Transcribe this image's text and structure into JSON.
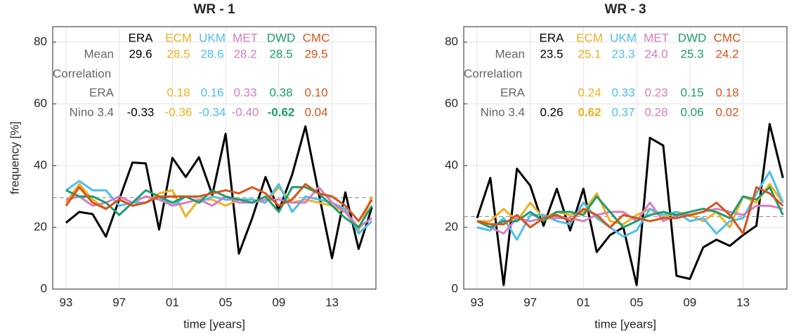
{
  "chart_data": [
    {
      "type": "line",
      "title": "WR - 1",
      "xlabel": "time [years]",
      "ylabel": "frequency [%]",
      "categories": [
        "93",
        null,
        null,
        null,
        "97",
        null,
        null,
        null,
        "01",
        null,
        null,
        null,
        "05",
        null,
        null,
        null,
        "09",
        null,
        null,
        null,
        "13",
        null,
        null,
        null
      ],
      "series": [
        {
          "name": "ERA",
          "color": "#000000",
          "values": [
            21.5,
            25,
            24.3,
            17,
            29,
            41,
            40.7,
            19.3,
            42.5,
            36.3,
            42.7,
            30.5,
            50.3,
            11.5,
            23,
            36.3,
            25.5,
            37,
            52.7,
            31,
            10,
            31.3,
            13,
            26.5
          ]
        },
        {
          "name": "ECM",
          "color": "#EDB120",
          "values": [
            28,
            34,
            29,
            26,
            29,
            27,
            28,
            31,
            32,
            23.5,
            29,
            29,
            27,
            29,
            29,
            28,
            33,
            28,
            29,
            28,
            27,
            25,
            19,
            30
          ]
        },
        {
          "name": "UKM",
          "color": "#4DBEEE",
          "values": [
            32,
            35,
            32,
            32,
            27,
            28,
            28,
            30,
            27,
            30,
            28,
            30,
            29,
            29,
            29,
            28,
            34,
            25,
            30,
            29,
            28,
            26,
            18,
            22
          ]
        },
        {
          "name": "MET",
          "color": "#D87CBE",
          "values": [
            29,
            30,
            27,
            28,
            30,
            28,
            30,
            29,
            27,
            28,
            29,
            27,
            30,
            28,
            28,
            29,
            29,
            28,
            28,
            33,
            28,
            25,
            20,
            23
          ]
        },
        {
          "name": "DWD",
          "color": "#1A9E6E",
          "values": [
            32,
            30,
            30,
            28,
            24,
            28,
            32,
            30,
            28,
            30,
            28,
            32,
            30,
            29,
            28,
            30,
            25,
            33,
            33,
            31,
            27,
            23,
            20,
            27
          ]
        },
        {
          "name": "CMC",
          "color": "#D95319",
          "values": [
            27,
            33,
            28,
            26,
            29,
            27,
            28,
            30,
            30,
            30,
            30,
            31,
            32,
            31,
            33,
            31,
            27,
            29,
            34,
            31,
            30,
            27,
            22,
            29
          ]
        }
      ],
      "ylim": [
        0,
        85
      ],
      "yticks": [
        0,
        20,
        40,
        60,
        80
      ],
      "grid": true,
      "mean_line": true,
      "table": {
        "rows": [
          {
            "label": "Mean",
            "values": [
              "29.6",
              "28.5",
              "28.6",
              "28.2",
              "28.5",
              "29.5"
            ]
          },
          {
            "label": "Correlation"
          },
          {
            "label": "ERA",
            "values": [
              null,
              "0.18",
              "0.16",
              "0.33",
              "0.38",
              "0.10"
            ]
          },
          {
            "label": "Nino 3.4",
            "values": [
              "-0.33",
              "-0.36",
              "-0.34",
              "-0.40",
              "-0.62",
              "0.04"
            ]
          }
        ],
        "bold_cell": [
          3,
          4
        ]
      }
    },
    {
      "type": "line",
      "title": "WR - 3",
      "xlabel": "time [years]",
      "categories": [
        "93",
        null,
        null,
        null,
        "97",
        null,
        null,
        null,
        "01",
        null,
        null,
        null,
        "05",
        null,
        null,
        null,
        "09",
        null,
        null,
        null,
        "13",
        null,
        null,
        null
      ],
      "series": [
        {
          "name": "ERA",
          "color": "#000000",
          "values": [
            23,
            36,
            1.3,
            39,
            33.5,
            20.5,
            32.5,
            19,
            32.5,
            12,
            17.5,
            20,
            1.3,
            49,
            46.5,
            4.3,
            3.3,
            13.5,
            16,
            14,
            17.5,
            20.5,
            53.5,
            36
          ]
        },
        {
          "name": "ECM",
          "color": "#EDB120",
          "values": [
            22,
            22,
            26,
            22,
            28,
            23,
            25,
            24,
            25,
            31,
            22,
            21,
            24,
            26,
            23,
            25,
            24,
            22,
            25,
            20,
            30,
            28,
            34,
            28
          ]
        },
        {
          "name": "UKM",
          "color": "#4DBEEE",
          "values": [
            20,
            19,
            23,
            16,
            24,
            24,
            22,
            21,
            28,
            23,
            20,
            17,
            19,
            26,
            24,
            25,
            22,
            23,
            18,
            22,
            23,
            31,
            38,
            28
          ]
        },
        {
          "name": "MET",
          "color": "#D87CBE",
          "values": [
            22,
            20,
            18,
            23,
            22,
            23,
            23,
            23,
            22,
            24,
            25,
            25,
            22,
            28,
            22,
            24,
            24,
            25,
            26,
            25,
            24,
            27,
            27,
            26
          ]
        },
        {
          "name": "DWD",
          "color": "#1A9E6E",
          "values": [
            22,
            20,
            22,
            22,
            25,
            22,
            25,
            25,
            24,
            30,
            25,
            20,
            22,
            24,
            25,
            24,
            25,
            26,
            25,
            23,
            30,
            29,
            33,
            24
          ]
        },
        {
          "name": "CMC",
          "color": "#D95319",
          "values": [
            22,
            21,
            21,
            24,
            20,
            23,
            24,
            22,
            26,
            24,
            20,
            24,
            23,
            22,
            23,
            23,
            24,
            25,
            28,
            24,
            18,
            33,
            31,
            27
          ]
        }
      ],
      "ylim": [
        0,
        85
      ],
      "yticks": [
        0,
        20,
        40,
        60,
        80
      ],
      "grid": true,
      "mean_line": true,
      "table": {
        "rows": [
          {
            "label": "Mean",
            "values": [
              "23.5",
              "25.1",
              "23.3",
              "24.0",
              "25.3",
              "24.2"
            ]
          },
          {
            "label": "Correlation"
          },
          {
            "label": "ERA",
            "values": [
              null,
              "0.24",
              "0.33",
              "0.23",
              "0.15",
              "0.18"
            ]
          },
          {
            "label": "Nino 3.4",
            "values": [
              "0.26",
              "0.62",
              "0.37",
              "0.28",
              "0.06",
              "0.02"
            ]
          }
        ],
        "bold_cell": [
          3,
          1
        ]
      }
    }
  ]
}
